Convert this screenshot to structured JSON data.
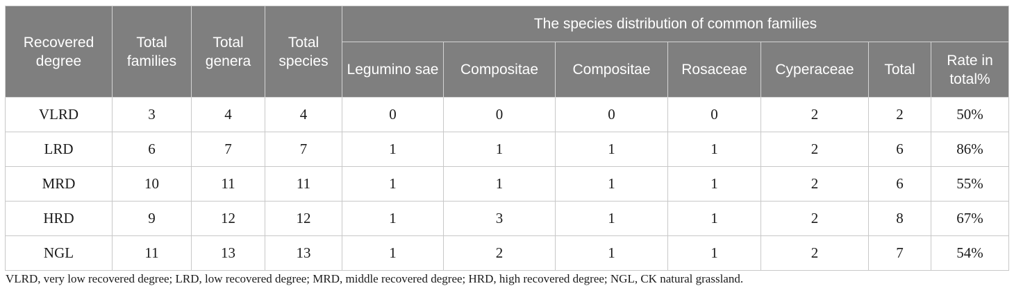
{
  "table": {
    "header": {
      "recovered_degree": "Recovered degree",
      "total_families": "Total families",
      "total_genera": "Total genera",
      "total_species": "Total species",
      "group": "The species distribution of common families",
      "sub": [
        "Legumino sae",
        "Compositae",
        "Compositae",
        "Rosaceae",
        "Cyperaceae",
        "Total",
        "Rate in total%"
      ]
    },
    "rows": [
      [
        "VLRD",
        "3",
        "4",
        "4",
        "0",
        "0",
        "0",
        "0",
        "2",
        "2",
        "50%"
      ],
      [
        "LRD",
        "6",
        "7",
        "7",
        "1",
        "1",
        "1",
        "1",
        "2",
        "6",
        "86%"
      ],
      [
        "MRD",
        "10",
        "11",
        "11",
        "1",
        "1",
        "1",
        "1",
        "2",
        "6",
        "55%"
      ],
      [
        "HRD",
        "9",
        "12",
        "12",
        "1",
        "3",
        "1",
        "1",
        "2",
        "8",
        "67%"
      ],
      [
        "NGL",
        "11",
        "13",
        "13",
        "1",
        "2",
        "1",
        "1",
        "2",
        "7",
        "54%"
      ]
    ]
  },
  "footnote": "VLRD, very low recovered degree; LRD, low recovered degree; MRD, middle recovered degree; HRD, high recovered degree; NGL, CK natural grassland."
}
